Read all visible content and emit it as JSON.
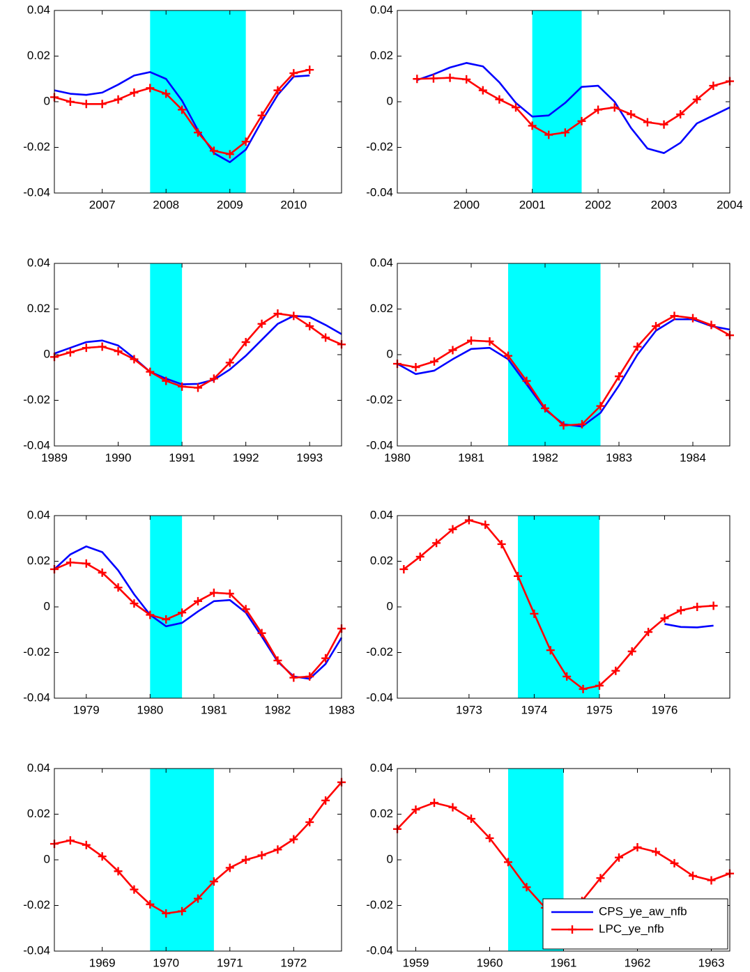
{
  "chart_data": [
    {
      "type": "line",
      "x": [
        2006.25,
        2006.5,
        2006.75,
        2007,
        2007.25,
        2007.5,
        2007.75,
        2008,
        2008.25,
        2008.5,
        2008.75,
        2009,
        2009.25,
        2009.5,
        2009.75,
        2010,
        2010.25
      ],
      "xlim": [
        2006.25,
        2010.75
      ],
      "xticks": [
        2007,
        2008,
        2009,
        2010
      ],
      "ylim": [
        -0.04,
        0.04
      ],
      "yticks": [
        0.04,
        0.02,
        0,
        -0.02,
        -0.04
      ],
      "shade": [
        2007.75,
        2009.25
      ],
      "shade_color": "#00ffff",
      "series": [
        {
          "color": "#0000ff",
          "values": [
            0.005,
            0.0035,
            0.003,
            0.004,
            0.0075,
            0.0115,
            0.013,
            0.01,
            0.0005,
            -0.0125,
            -0.0225,
            -0.0265,
            -0.021,
            -0.0085,
            0.003,
            0.011,
            0.0115
          ]
        },
        {
          "color": "#ff0000",
          "marker": "+",
          "values": [
            0.002,
            0,
            -0.001,
            -0.001,
            0.001,
            0.004,
            0.006,
            0.0035,
            -0.0035,
            -0.0135,
            -0.0215,
            -0.023,
            -0.0175,
            -0.006,
            0.005,
            0.0125,
            0.014
          ]
        }
      ]
    },
    {
      "type": "line",
      "x": [
        1999.25,
        1999.5,
        1999.75,
        2000,
        2000.25,
        2000.5,
        2000.75,
        2001,
        2001.25,
        2001.5,
        2001.75,
        2002,
        2002.25,
        2002.5,
        2002.75,
        2003,
        2003.25,
        2003.5,
        2003.75,
        2004
      ],
      "xlim": [
        1998.95,
        2004
      ],
      "xticks": [
        2000,
        2001,
        2002,
        2003,
        2004
      ],
      "ylim": [
        -0.04,
        0.04
      ],
      "yticks": [
        0.04,
        0.02,
        0,
        -0.02,
        -0.04
      ],
      "shade": [
        2001,
        2001.75
      ],
      "shade_color": "#00ffff",
      "series": [
        {
          "color": "#0000ff",
          "values": [
            0.0095,
            0.012,
            0.015,
            0.017,
            0.0155,
            0.0085,
            -0.0005,
            -0.0065,
            -0.006,
            -0.0005,
            0.0065,
            0.007,
            0,
            -0.0115,
            -0.0205,
            -0.0225,
            -0.018,
            -0.0095,
            -0.006,
            -0.0025
          ]
        },
        {
          "color": "#ff0000",
          "marker": "+",
          "values": [
            0.01,
            0.0102,
            0.0105,
            0.0098,
            0.005,
            0.001,
            -0.0025,
            -0.0105,
            -0.0145,
            -0.0135,
            -0.0085,
            -0.0035,
            -0.0025,
            -0.0055,
            -0.009,
            -0.01,
            -0.0055,
            0.001,
            0.007,
            0.009
          ]
        }
      ]
    },
    {
      "type": "line",
      "x": [
        1989,
        1989.25,
        1989.5,
        1989.75,
        1990,
        1990.25,
        1990.5,
        1990.75,
        1991,
        1991.25,
        1991.5,
        1991.75,
        1992,
        1992.25,
        1992.5,
        1992.75,
        1993,
        1993.25,
        1993.5
      ],
      "xlim": [
        1989,
        1993.5
      ],
      "xticks": [
        1989,
        1990,
        1991,
        1992,
        1993
      ],
      "ylim": [
        -0.04,
        0.04
      ],
      "yticks": [
        0.04,
        0.02,
        0,
        -0.02,
        -0.04
      ],
      "shade": [
        1990.5,
        1991
      ],
      "shade_color": "#00ffff",
      "series": [
        {
          "color": "#0000ff",
          "values": [
            0.0005,
            0.003,
            0.0055,
            0.0062,
            0.004,
            -0.0015,
            -0.0075,
            -0.0105,
            -0.013,
            -0.0128,
            -0.011,
            -0.0065,
            -0.0005,
            0.0065,
            0.0135,
            0.017,
            0.0165,
            0.013,
            0.009
          ]
        },
        {
          "color": "#ff0000",
          "marker": "+",
          "values": [
            -0.001,
            0.001,
            0.003,
            0.0035,
            0.0015,
            -0.002,
            -0.0075,
            -0.0115,
            -0.014,
            -0.0145,
            -0.0105,
            -0.0035,
            0.0055,
            0.0135,
            0.018,
            0.017,
            0.0125,
            0.0075,
            0.0045
          ]
        }
      ]
    },
    {
      "type": "line",
      "x": [
        1980,
        1980.25,
        1980.5,
        1980.75,
        1981,
        1981.25,
        1981.5,
        1981.75,
        1982,
        1982.25,
        1982.5,
        1982.75,
        1983,
        1983.25,
        1983.5,
        1983.75,
        1984,
        1984.25,
        1984.5
      ],
      "xlim": [
        1980,
        1984.5
      ],
      "xticks": [
        1980,
        1981,
        1982,
        1983,
        1984
      ],
      "ylim": [
        -0.04,
        0.04
      ],
      "yticks": [
        0.04,
        0.02,
        0,
        -0.02,
        -0.04
      ],
      "shade": [
        1981.5,
        1982.75
      ],
      "shade_color": "#00ffff",
      "series": [
        {
          "color": "#0000ff",
          "values": [
            -0.004,
            -0.0085,
            -0.007,
            -0.002,
            0.0025,
            0.003,
            -0.002,
            -0.013,
            -0.024,
            -0.0305,
            -0.0315,
            -0.0255,
            -0.0135,
            0,
            0.0105,
            0.0155,
            0.0155,
            0.0125,
            0.011
          ]
        },
        {
          "color": "#ff0000",
          "marker": "+",
          "values": [
            -0.004,
            -0.0055,
            -0.003,
            0.002,
            0.0062,
            0.0058,
            -0.0005,
            -0.0115,
            -0.0235,
            -0.031,
            -0.0305,
            -0.0225,
            -0.0095,
            0.0035,
            0.0125,
            0.017,
            0.016,
            0.013,
            0.0085
          ]
        }
      ]
    },
    {
      "type": "line",
      "x": [
        1978.5,
        1978.75,
        1979,
        1979.25,
        1979.5,
        1979.75,
        1980,
        1980.25,
        1980.5,
        1980.75,
        1981,
        1981.25,
        1981.5,
        1981.75,
        1982,
        1982.25,
        1982.5,
        1982.75,
        1983
      ],
      "xlim": [
        1978.5,
        1983
      ],
      "xticks": [
        1979,
        1980,
        1981,
        1982,
        1983
      ],
      "ylim": [
        -0.04,
        0.04
      ],
      "yticks": [
        0.04,
        0.02,
        0,
        -0.02,
        -0.04
      ],
      "shade": [
        1980,
        1980.5
      ],
      "shade_color": "#00ffff",
      "series": [
        {
          "color": "#0000ff",
          "values": [
            0.0165,
            0.023,
            0.0265,
            0.024,
            0.016,
            0.0055,
            -0.0035,
            -0.0085,
            -0.007,
            -0.002,
            0.0025,
            0.003,
            -0.0025,
            -0.013,
            -0.024,
            -0.0305,
            -0.0315,
            -0.025,
            -0.0135
          ]
        },
        {
          "color": "#ff0000",
          "marker": "+",
          "values": [
            0.0165,
            0.0195,
            0.019,
            0.015,
            0.0085,
            0.0015,
            -0.0035,
            -0.0055,
            -0.0025,
            0.0025,
            0.0062,
            0.0058,
            -0.001,
            -0.0115,
            -0.0235,
            -0.031,
            -0.0305,
            -0.0225,
            -0.0095
          ]
        }
      ]
    },
    {
      "type": "line",
      "x": [
        1972,
        1972.25,
        1972.5,
        1972.75,
        1973,
        1973.25,
        1973.5,
        1973.75,
        1974,
        1974.25,
        1974.5,
        1974.75,
        1975,
        1975.25,
        1975.5,
        1975.75,
        1976,
        1976.25,
        1976.5,
        1976.75
      ],
      "xlim": [
        1971.9,
        1977
      ],
      "xticks": [
        1973,
        1974,
        1975,
        1976
      ],
      "ylim": [
        -0.04,
        0.04
      ],
      "yticks": [
        0.04,
        0.02,
        0,
        -0.02,
        -0.04
      ],
      "shade": [
        1973.75,
        1975
      ],
      "shade_color": "#00ffff",
      "series": [
        {
          "color": "#0000ff",
          "values": [
            null,
            null,
            null,
            null,
            null,
            null,
            null,
            null,
            null,
            null,
            null,
            null,
            null,
            null,
            null,
            null,
            -0.0075,
            -0.0088,
            -0.009,
            -0.0082
          ]
        },
        {
          "color": "#ff0000",
          "marker": "+",
          "values": [
            0.0165,
            0.022,
            0.028,
            0.034,
            0.038,
            0.036,
            0.0275,
            0.0135,
            -0.003,
            -0.019,
            -0.0305,
            -0.036,
            -0.0345,
            -0.028,
            -0.0195,
            -0.011,
            -0.005,
            -0.0015,
            0,
            0.0005
          ]
        }
      ]
    },
    {
      "type": "line",
      "x": [
        1968.25,
        1968.5,
        1968.75,
        1969,
        1969.25,
        1969.5,
        1969.75,
        1970,
        1970.25,
        1970.5,
        1970.75,
        1971,
        1971.25,
        1971.5,
        1971.75,
        1972,
        1972.25,
        1972.5,
        1972.75
      ],
      "xlim": [
        1968.25,
        1972.75
      ],
      "xticks": [
        1969,
        1970,
        1971,
        1972
      ],
      "ylim": [
        -0.04,
        0.04
      ],
      "yticks": [
        0.04,
        0.02,
        0,
        -0.02,
        -0.04
      ],
      "shade": [
        1969.75,
        1970.75
      ],
      "shade_color": "#00ffff",
      "series": [
        {
          "color": "#ff0000",
          "marker": "+",
          "values": [
            0.007,
            0.0085,
            0.0065,
            0.0015,
            -0.005,
            -0.013,
            -0.0195,
            -0.0235,
            -0.0225,
            -0.017,
            -0.0095,
            -0.0035,
            0,
            0.002,
            0.0045,
            0.009,
            0.0165,
            0.026,
            0.034
          ]
        }
      ]
    },
    {
      "type": "line",
      "x": [
        1958.75,
        1959,
        1959.25,
        1959.5,
        1959.75,
        1960,
        1960.25,
        1960.5,
        1960.75,
        1961,
        1961.25,
        1961.5,
        1961.75,
        1962,
        1962.25,
        1962.5,
        1962.75,
        1963,
        1963.25
      ],
      "xlim": [
        1958.75,
        1963.25
      ],
      "xticks": [
        1959,
        1960,
        1961,
        1962,
        1963
      ],
      "ylim": [
        -0.04,
        0.04
      ],
      "yticks": [
        0.04,
        0.02,
        0,
        -0.02,
        -0.04
      ],
      "shade": [
        1960.25,
        1961
      ],
      "shade_color": "#00ffff",
      "legend": "lower right",
      "series": [
        {
          "name": "CPS_ye_aw_nfb",
          "color": "#0000ff",
          "values": [
            null,
            null,
            null,
            null,
            null,
            null,
            null,
            null,
            null,
            null,
            null,
            null,
            null,
            null,
            null,
            null,
            null,
            null,
            null
          ]
        },
        {
          "name": "LPC_ye_nfb",
          "color": "#ff0000",
          "marker": "+",
          "values": [
            0.0135,
            0.022,
            0.025,
            0.023,
            0.018,
            0.0095,
            -0.001,
            -0.012,
            -0.021,
            -0.022,
            -0.018,
            -0.008,
            0.001,
            0.0055,
            0.0035,
            -0.0015,
            -0.007,
            -0.009,
            -0.006
          ]
        }
      ]
    }
  ]
}
